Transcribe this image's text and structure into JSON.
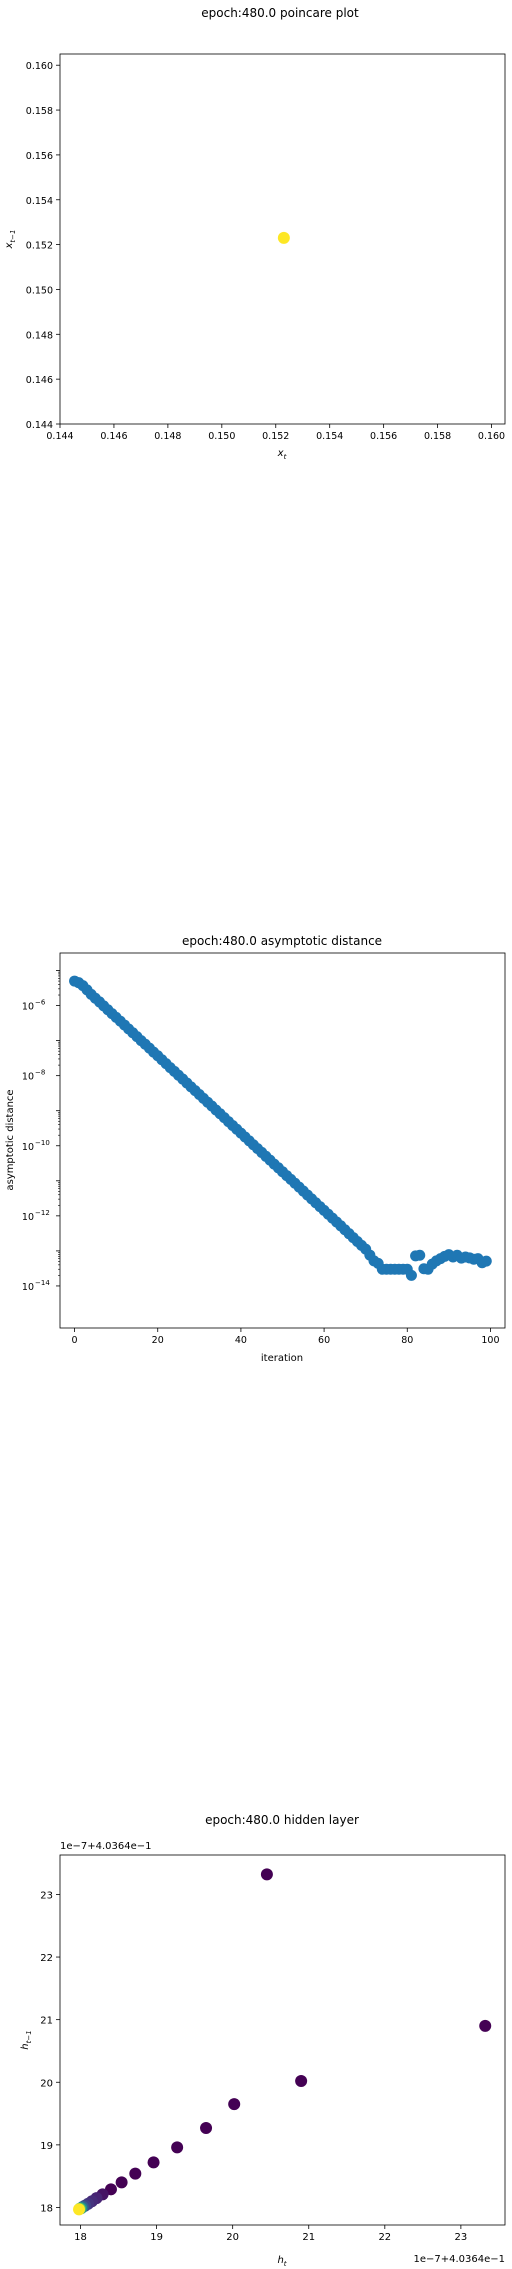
{
  "chart_data": [
    {
      "id": "poincare",
      "type": "scatter",
      "title": "epoch:480.0 poincare plot",
      "xlabel": "x_t",
      "ylabel": "x_{t-1}",
      "xlim": [
        0.144,
        0.1605
      ],
      "ylim": [
        0.144,
        0.1605
      ],
      "xticks": [
        0.144,
        0.146,
        0.148,
        0.15,
        0.152,
        0.154,
        0.156,
        0.158,
        0.16
      ],
      "yticks": [
        0.144,
        0.146,
        0.148,
        0.15,
        0.152,
        0.154,
        0.156,
        0.158,
        0.16
      ],
      "xtick_labels": [
        "0.144",
        "0.146",
        "0.148",
        "0.150",
        "0.152",
        "0.154",
        "0.156",
        "0.158",
        "0.160"
      ],
      "ytick_labels": [
        "0.144",
        "0.146",
        "0.148",
        "0.150",
        "0.152",
        "0.154",
        "0.156",
        "0.158",
        "0.160"
      ],
      "points": [
        {
          "x": 0.1523,
          "y": 0.1523
        }
      ],
      "color": "#fde725",
      "grid": false
    },
    {
      "id": "asymptotic",
      "type": "scatter",
      "title": "epoch:480.0 asymptotic distance",
      "xlabel": "iteration",
      "ylabel": "asymptotic distance",
      "yscale": "log",
      "xlim": [
        -3.5,
        103.5
      ],
      "ylim_log10": [
        -15.2,
        -4.5
      ],
      "xticks": [
        0,
        20,
        40,
        60,
        80,
        100
      ],
      "xtick_labels": [
        "0",
        "20",
        "40",
        "60",
        "80",
        "100"
      ],
      "yticks": [
        -6,
        -8,
        -10,
        -12,
        -14
      ],
      "ytick_labels": [
        "10",
        "10",
        "10",
        "10",
        "10"
      ],
      "ytick_exponents": [
        "−6",
        "−8",
        "−10",
        "−12",
        "−14"
      ],
      "color": "#1f77b4",
      "grid": false,
      "x": [
        0,
        1,
        2,
        3,
        4,
        5,
        6,
        7,
        8,
        9,
        10,
        11,
        12,
        13,
        14,
        15,
        16,
        17,
        18,
        19,
        20,
        21,
        22,
        23,
        24,
        25,
        26,
        27,
        28,
        29,
        30,
        31,
        32,
        33,
        34,
        35,
        36,
        37,
        38,
        39,
        40,
        41,
        42,
        43,
        44,
        45,
        46,
        47,
        48,
        49,
        50,
        51,
        52,
        53,
        54,
        55,
        56,
        57,
        58,
        59,
        60,
        61,
        62,
        63,
        64,
        65,
        66,
        67,
        68,
        69,
        70,
        71,
        72,
        73,
        74,
        75,
        76,
        77,
        78,
        79,
        80,
        81,
        82,
        83,
        84,
        85,
        86,
        87,
        88,
        89,
        90,
        91,
        92,
        93,
        94,
        95,
        96,
        97,
        98,
        99
      ],
      "y": [
        5e-06,
        4.5e-06,
        3.7e-06,
        2.8e-06,
        2.08e-06,
        1.62e-06,
        1.27e-06,
        9.8e-07,
        7.6e-07,
        5.9e-07,
        4.6e-07,
        3.6e-07,
        2.8e-07,
        2.15e-07,
        1.68e-07,
        1.3e-07,
        1e-07,
        7.9e-08,
        6.1e-08,
        4.7e-08,
        3.7e-08,
        2.85e-08,
        2.2e-08,
        1.7e-08,
        1.33e-08,
        1.03e-08,
        8e-09,
        6.2e-09,
        4.8e-09,
        3.75e-09,
        2.9e-09,
        2.25e-09,
        1.75e-09,
        1.36e-09,
        1.05e-09,
        8.2e-10,
        6.35e-10,
        4.9e-10,
        3.8e-10,
        2.95e-10,
        2.3e-10,
        1.78e-10,
        1.38e-10,
        1.07e-10,
        8.3e-11,
        6.45e-11,
        5e-11,
        3.9e-11,
        3e-11,
        2.35e-11,
        1.82e-11,
        1.41e-11,
        1.1e-11,
        8.5e-12,
        6.6e-12,
        5.1e-12,
        3.95e-12,
        3.06e-12,
        2.37e-12,
        1.84e-12,
        1.43e-12,
        1.11e-12,
        8.6e-13,
        6.7e-13,
        5.2e-13,
        4e-13,
        3.1e-13,
        2.4e-13,
        1.86e-13,
        1.44e-13,
        1.12e-13,
        7.6e-14,
        5.2e-14,
        4.4e-14,
        3e-14,
        3e-14,
        3e-14,
        3e-14,
        3e-14,
        3e-14,
        3e-14,
        2e-14,
        7.2e-14,
        7.5e-14,
        3.1e-14,
        3e-14,
        4.2e-14,
        5.2e-14,
        6e-14,
        7e-14,
        7.8e-14,
        6.7e-14,
        7.5e-14,
        6.2e-14,
        6.7e-14,
        6.3e-14,
        5.8e-14,
        6e-14,
        4.6e-14,
        5.1e-14
      ]
    },
    {
      "id": "hidden",
      "type": "scatter",
      "title": "epoch:480.0 hidden layer",
      "xlabel": "h_t",
      "ylabel": "h_{t-1}",
      "offset_label": "1e−7+4.0364e−1",
      "xlim": [
        17.73,
        23.58
      ],
      "ylim": [
        17.72,
        23.63
      ],
      "xticks": [
        18,
        19,
        20,
        21,
        22,
        23
      ],
      "yticks": [
        18,
        19,
        20,
        21,
        22,
        23
      ],
      "xtick_labels": [
        "18",
        "19",
        "20",
        "21",
        "22",
        "23"
      ],
      "ytick_labels": [
        "18",
        "19",
        "20",
        "21",
        "22",
        "23"
      ],
      "colormap": "viridis",
      "grid": false,
      "points": [
        {
          "x": 20.45,
          "y": 23.32,
          "c": 0.0
        },
        {
          "x": 23.32,
          "y": 20.9,
          "c": 0.0
        },
        {
          "x": 20.9,
          "y": 20.02,
          "c": 0.0
        },
        {
          "x": 20.02,
          "y": 19.65,
          "c": 0.0
        },
        {
          "x": 19.65,
          "y": 19.27,
          "c": 0.0
        },
        {
          "x": 19.27,
          "y": 18.96,
          "c": 0.0
        },
        {
          "x": 18.96,
          "y": 18.72,
          "c": 0.0
        },
        {
          "x": 18.72,
          "y": 18.54,
          "c": 0.0
        },
        {
          "x": 18.54,
          "y": 18.4,
          "c": 0.0
        },
        {
          "x": 18.4,
          "y": 18.29,
          "c": 0.0
        },
        {
          "x": 18.29,
          "y": 18.21,
          "c": 0.05
        },
        {
          "x": 18.21,
          "y": 18.15,
          "c": 0.1
        },
        {
          "x": 18.15,
          "y": 18.1,
          "c": 0.12
        },
        {
          "x": 18.1,
          "y": 18.06,
          "c": 0.15
        },
        {
          "x": 18.06,
          "y": 18.03,
          "c": 0.2
        },
        {
          "x": 18.03,
          "y": 18.01,
          "c": 0.3
        },
        {
          "x": 18.01,
          "y": 17.99,
          "c": 0.5
        },
        {
          "x": 17.99,
          "y": 17.98,
          "c": 0.75
        },
        {
          "x": 17.98,
          "y": 17.97,
          "c": 1.0
        }
      ]
    }
  ]
}
